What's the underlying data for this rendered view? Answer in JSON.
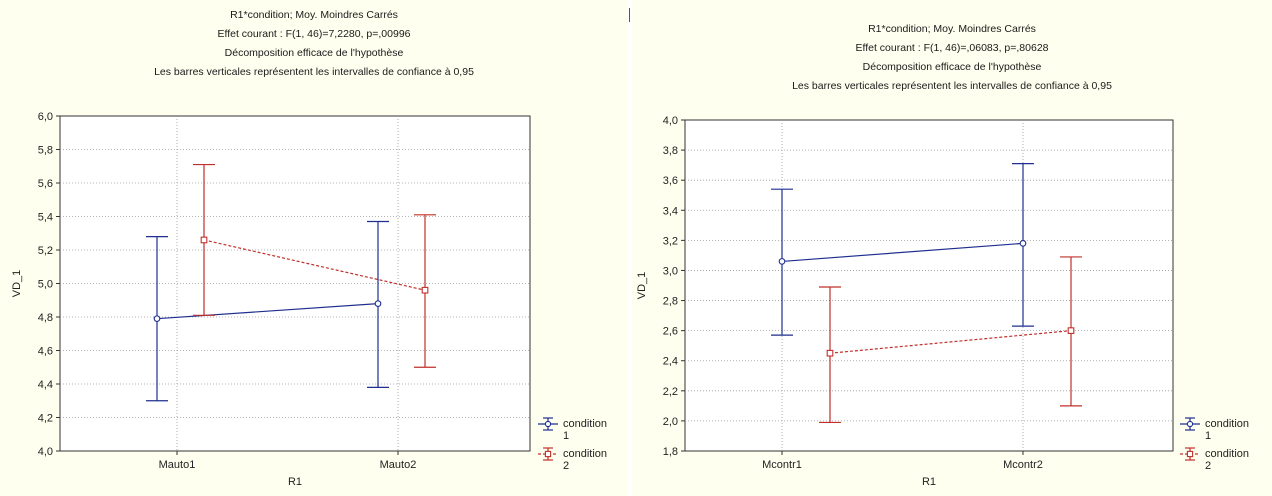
{
  "chart_data": [
    {
      "type": "line",
      "title_lines": [
        "R1*condition; Moy. Moindres Carrés",
        "Effet courant : F(1, 46)=7,2280, p=,00996",
        "Décomposition efficace de l'hypothèse",
        "Les barres verticales représentent les intervalles de confiance à 0,95"
      ],
      "xlabel": "R1",
      "ylabel": "VD_1",
      "categories": [
        "Mauto1",
        "Mauto2"
      ],
      "ylim": [
        4.0,
        6.0
      ],
      "yticks": [
        "4,0",
        "4,2",
        "4,4",
        "4,6",
        "4,8",
        "5,0",
        "5,2",
        "5,4",
        "5,6",
        "5,8",
        "6,0"
      ],
      "grid": true,
      "legend_position": "bottom-right",
      "series": [
        {
          "name": "condition 1",
          "legend_lines": [
            "condition",
            "1"
          ],
          "color": "#1f2f8f",
          "dashed": false,
          "marker": "circle",
          "values": [
            4.79,
            4.88
          ],
          "ci_low": [
            4.3,
            4.38
          ],
          "ci_high": [
            5.28,
            5.37
          ]
        },
        {
          "name": "condition 2",
          "legend_lines": [
            "condition",
            "2"
          ],
          "color": "#c0302a",
          "dashed": true,
          "marker": "square",
          "values": [
            5.26,
            4.96
          ],
          "ci_low": [
            4.81,
            4.5
          ],
          "ci_high": [
            5.71,
            5.41
          ]
        }
      ]
    },
    {
      "type": "line",
      "title_lines": [
        "R1*condition; Moy. Moindres Carrés",
        "Effet courant : F(1, 46)=,06083, p=,80628",
        "Décomposition efficace de l'hypothèse",
        "Les barres verticales représentent les intervalles de confiance à 0,95"
      ],
      "xlabel": "R1",
      "ylabel": "VD_1",
      "categories": [
        "Mcontr1",
        "Mcontr2"
      ],
      "ylim": [
        1.8,
        4.0
      ],
      "yticks": [
        "1,8",
        "2,0",
        "2,2",
        "2,4",
        "2,6",
        "2,8",
        "3,0",
        "3,2",
        "3,4",
        "3,6",
        "3,8",
        "4,0"
      ],
      "grid": true,
      "legend_position": "bottom-right",
      "series": [
        {
          "name": "condition 1",
          "legend_lines": [
            "condition",
            "1"
          ],
          "color": "#1f2f8f",
          "dashed": false,
          "marker": "circle",
          "values": [
            3.06,
            3.18
          ],
          "ci_low": [
            2.57,
            2.63
          ],
          "ci_high": [
            3.54,
            3.71
          ]
        },
        {
          "name": "condition 2",
          "legend_lines": [
            "condition",
            "2"
          ],
          "color": "#c0302a",
          "dashed": true,
          "marker": "square",
          "values": [
            2.45,
            2.6
          ],
          "ci_low": [
            1.99,
            2.1
          ],
          "ci_high": [
            2.89,
            3.09
          ]
        }
      ]
    }
  ]
}
